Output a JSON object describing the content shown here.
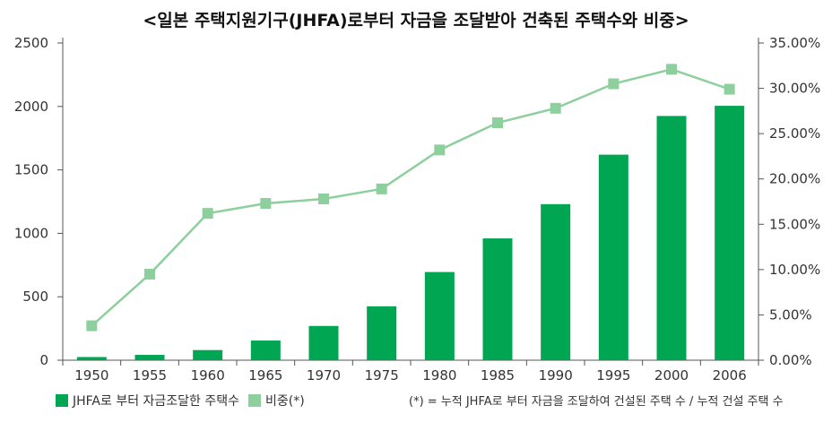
{
  "chart_data": {
    "type": "bar",
    "title": "<일본 주택지원기구(JHFA)로부터 자금을 조달받아 건축된 주택수와 비중>",
    "categories": [
      "1950",
      "1955",
      "1960",
      "1965",
      "1970",
      "1975",
      "1980",
      "1985",
      "1990",
      "1995",
      "2000",
      "2006"
    ],
    "series": [
      {
        "name": "JHFA로 부터 자금조달한 주택수",
        "type": "bar",
        "axis": "left",
        "values": [
          25,
          42,
          80,
          155,
          270,
          425,
          695,
          960,
          1230,
          1620,
          1925,
          2005
        ]
      },
      {
        "name": "비중(*)",
        "type": "line",
        "axis": "right",
        "values": [
          3.8,
          9.5,
          16.2,
          17.3,
          17.8,
          18.9,
          23.2,
          26.2,
          27.8,
          30.5,
          32.1,
          29.9
        ]
      }
    ],
    "y_left": {
      "min": 0,
      "max": 2500,
      "ticks": [
        0,
        500,
        1000,
        1500,
        2000,
        2500
      ]
    },
    "y_right": {
      "min": 0,
      "max": 35,
      "ticks": [
        "0.00%",
        "5.00%",
        "10.00%",
        "15.00%",
        "20.00%",
        "25.00%",
        "30.00%",
        "35.00%"
      ]
    },
    "legend_position": "bottom-left",
    "note": "(*) = 누적 JHFA로 부터 자금을 조달하여 건설된 주택 수 / 누적 건설 주택 수",
    "colors": {
      "bar": "#00a651",
      "line": "#8dcf9d",
      "marker": "#8dcf9d",
      "axis": "#555555"
    }
  }
}
